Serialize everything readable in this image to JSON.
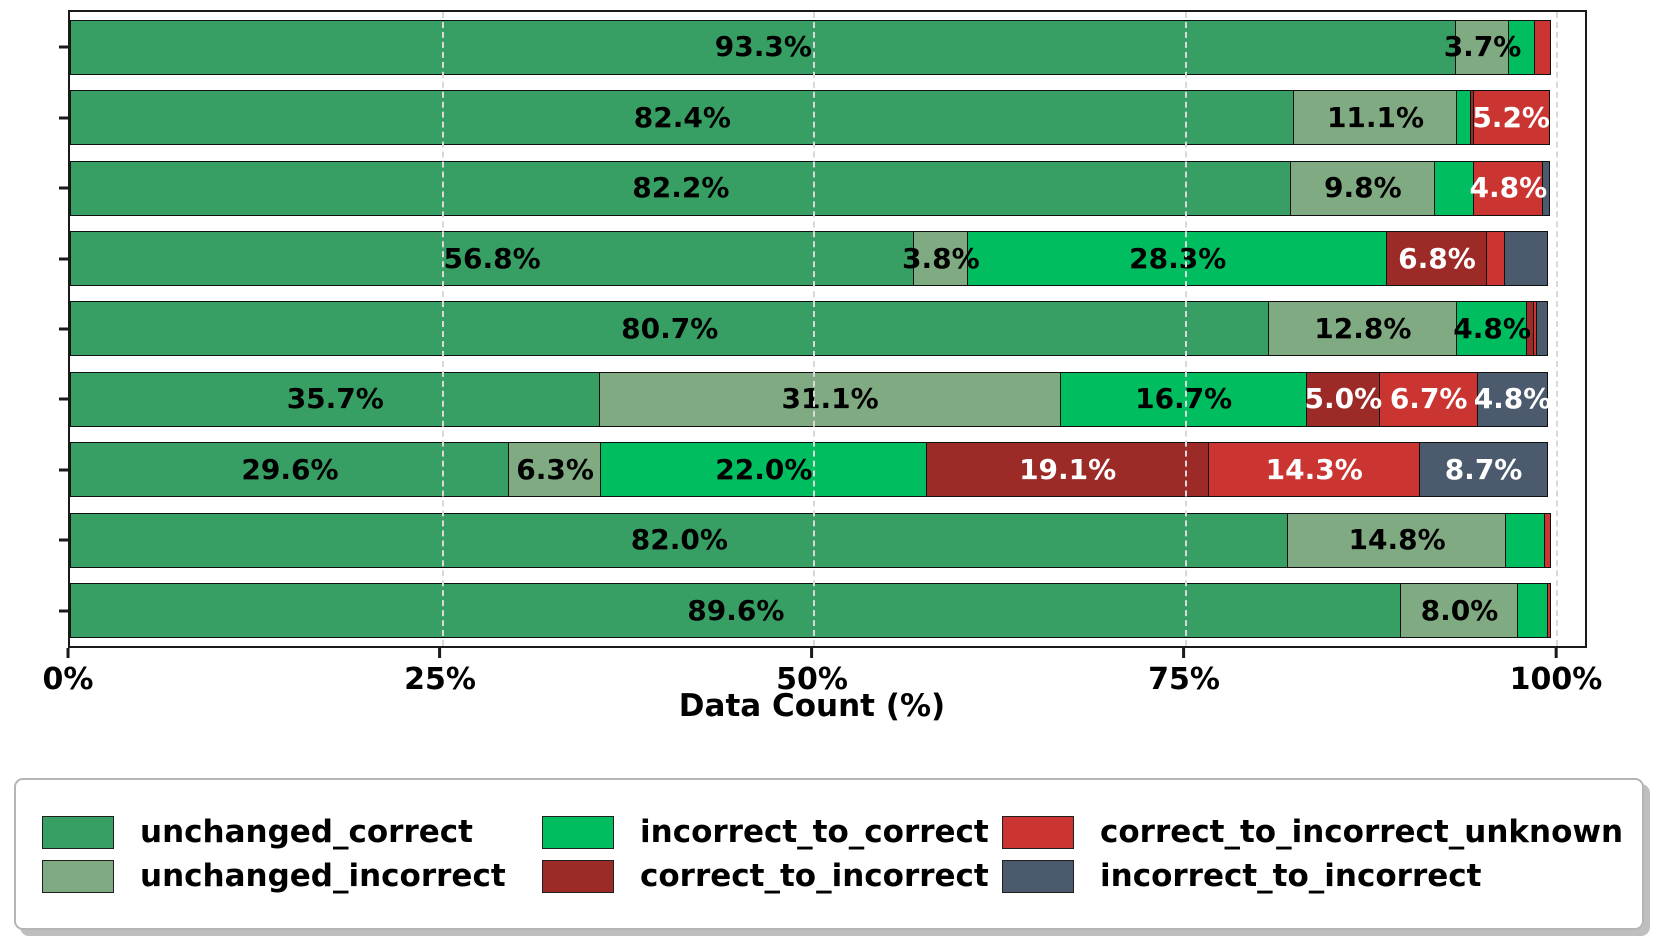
{
  "chart_data": {
    "type": "bar",
    "orientation": "horizontal_stacked",
    "title": "",
    "xlabel": "Data Count (%)",
    "ylabel": "",
    "xlim": [
      0,
      100
    ],
    "x_ticks": [
      "0%",
      "25%",
      "50%",
      "75%",
      "100%"
    ],
    "x_tick_values": [
      0,
      25,
      50,
      75,
      100
    ],
    "y_tick_labels": "none (blank ticks, 9 rows top to bottom)",
    "grid": "vertical dashed gridlines at 25/50/75/100",
    "legend_position": "bottom box, 3 columns x 2 rows",
    "bar_label_rule": "segment percentage shown when value >= 3.5",
    "label_threshold": 3.5,
    "rows": 9,
    "series": [
      {
        "name": "unchanged_correct",
        "color": "#379f63",
        "label_color": "#000000",
        "values": [
          93.3,
          82.4,
          82.2,
          56.8,
          80.7,
          35.7,
          29.6,
          82.0,
          89.6
        ]
      },
      {
        "name": "unchanged_incorrect",
        "color": "#80aa81",
        "label_color": "#000000",
        "values": [
          3.7,
          11.1,
          9.8,
          3.8,
          12.8,
          31.1,
          6.3,
          14.8,
          8.0
        ]
      },
      {
        "name": "incorrect_to_correct",
        "color": "#00bd5f",
        "label_color": "#000000",
        "values": [
          1.8,
          1.0,
          2.7,
          28.3,
          4.8,
          16.7,
          22.0,
          2.7,
          2.1
        ]
      },
      {
        "name": "correct_to_incorrect",
        "color": "#9c2b28",
        "label_color": "#ffffff",
        "values": [
          0.0,
          0.3,
          0.0,
          6.8,
          0.6,
          5.0,
          19.1,
          0.0,
          0.0
        ]
      },
      {
        "name": "correct_to_incorrect_unknown",
        "color": "#ca3431",
        "label_color": "#ffffff",
        "values": [
          1.2,
          5.2,
          4.8,
          1.3,
          0.3,
          6.7,
          14.3,
          0.5,
          0.3
        ]
      },
      {
        "name": "incorrect_to_incorrect",
        "color": "#4c5a6e",
        "label_color": "#ffffff",
        "values": [
          0.0,
          0.0,
          0.5,
          3.0,
          0.8,
          4.8,
          8.7,
          0.0,
          0.0
        ]
      }
    ],
    "visible_bar_labels": [
      [
        "93.3%",
        "3.7%"
      ],
      [
        "82.4%",
        "11.1%",
        "5.2%"
      ],
      [
        "82.2%",
        "9.8%",
        "4.8%"
      ],
      [
        "56.8%",
        "3.8%",
        "28.3%",
        "6.8%"
      ],
      [
        "80.7%",
        "12.8%",
        "4.8%"
      ],
      [
        "35.7%",
        "31.1%",
        "16.7%",
        "5.0%",
        "6.7%",
        "4.8%"
      ],
      [
        "29.6%",
        "6.3%",
        "22.0%",
        "19.1%",
        "14.3%",
        "8.7%"
      ],
      [
        "82.0%",
        "14.8%"
      ],
      [
        "89.6%",
        "8.0%"
      ]
    ],
    "legend_entries": [
      "unchanged_correct",
      "unchanged_incorrect",
      "incorrect_to_correct",
      "correct_to_incorrect",
      "correct_to_incorrect_unknown",
      "incorrect_to_incorrect"
    ]
  },
  "colors": {
    "plot_border": "#1a1a1a",
    "gridline": "#d9d9d9",
    "legend_border": "#b5b5b5",
    "legend_shadow": "#bfbfbf",
    "background": "#ffffff"
  }
}
